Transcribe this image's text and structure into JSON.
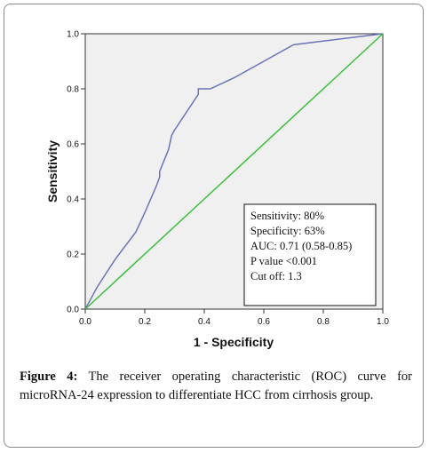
{
  "chart_data": {
    "type": "line",
    "xlabel": "1 - Specificity",
    "ylabel": "Sensitivity",
    "xlim": [
      0.0,
      1.0
    ],
    "ylim": [
      0.0,
      1.0
    ],
    "x_ticks": [
      "0.0",
      "0.2",
      "0.4",
      "0.6",
      "0.8",
      "1.0"
    ],
    "y_ticks": [
      "0.0",
      "0.2",
      "0.4",
      "0.6",
      "0.8",
      "1.0"
    ],
    "grid": false,
    "plot_background": "#f0f0f0",
    "series": [
      {
        "color": "#6a73b8",
        "points": [
          [
            0.0,
            0.0
          ],
          [
            0.04,
            0.08
          ],
          [
            0.1,
            0.18
          ],
          [
            0.17,
            0.28
          ],
          [
            0.2,
            0.35
          ],
          [
            0.24,
            0.45
          ],
          [
            0.25,
            0.48
          ],
          [
            0.25,
            0.5
          ],
          [
            0.28,
            0.58
          ],
          [
            0.29,
            0.63
          ],
          [
            0.3,
            0.65
          ],
          [
            0.38,
            0.78
          ],
          [
            0.38,
            0.8
          ],
          [
            0.42,
            0.8
          ],
          [
            0.5,
            0.84
          ],
          [
            0.6,
            0.9
          ],
          [
            0.7,
            0.96
          ],
          [
            1.0,
            1.0
          ]
        ]
      },
      {
        "color": "#3cbf3c",
        "points": [
          [
            0.0,
            0.0
          ],
          [
            1.0,
            1.0
          ]
        ]
      }
    ],
    "annotation": {
      "lines": [
        "Sensitivity: 80%",
        "Specificity: 63%",
        "AUC: 0.71 (0.58-0.85)",
        "P value <0.001",
        "Cut off: 1.3"
      ]
    }
  },
  "caption": {
    "label": "Figure 4:",
    "text": " The receiver operating characteristic (ROC) curve for microRNA-24 expression to differentiate HCC from cirrhosis group."
  }
}
